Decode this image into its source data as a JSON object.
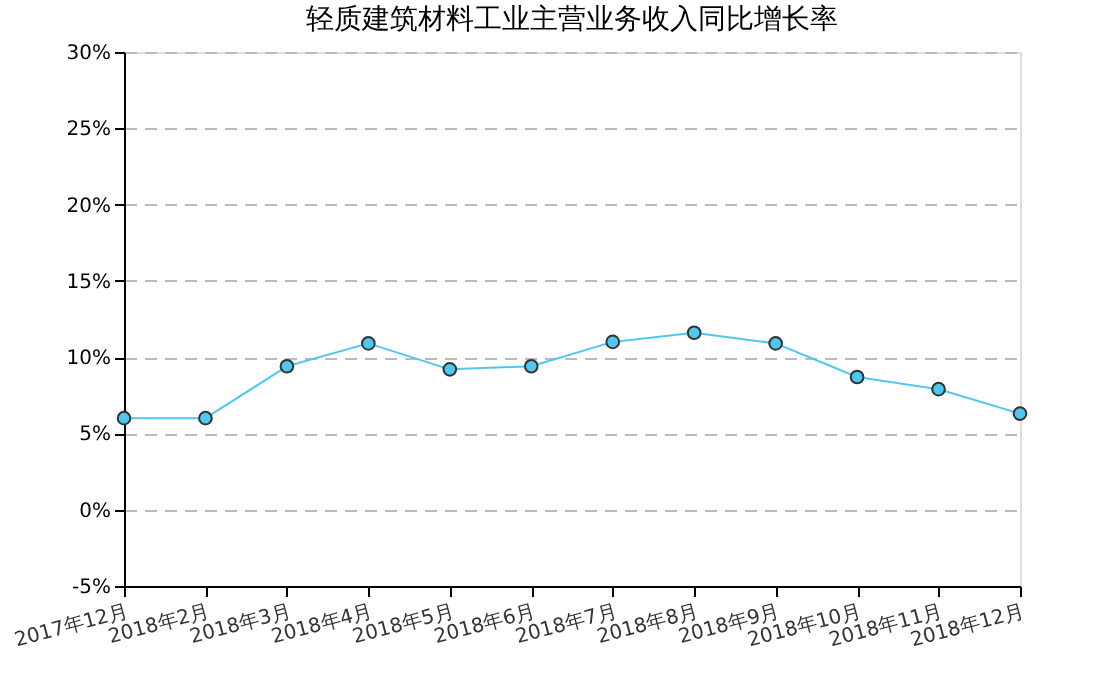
{
  "chart_data": {
    "type": "line",
    "title": "轻质建筑材料工业主营业务收入同比增长率",
    "categories": [
      "2017年12月",
      "2018年2月",
      "2018年3月",
      "2018年4月",
      "2018年5月",
      "2018年6月",
      "2018年7月",
      "2018年8月",
      "2018年9月",
      "2018年10月",
      "2018年11月",
      "2018年12月"
    ],
    "series": [
      {
        "color": "#4fc8f0",
        "values": [
          6.0,
          6.0,
          9.4,
          10.9,
          9.2,
          9.4,
          11.0,
          11.6,
          10.9,
          8.7,
          7.9,
          6.3
        ]
      }
    ],
    "ylim": [
      -5,
      30
    ],
    "yticks": [
      {
        "value": -5,
        "label": "-5%"
      },
      {
        "value": 0,
        "label": "0%"
      },
      {
        "value": 5,
        "label": "5%"
      },
      {
        "value": 10,
        "label": "10%"
      },
      {
        "value": 15,
        "label": "15%"
      },
      {
        "value": 20,
        "label": "20%"
      },
      {
        "value": 25,
        "label": "25%"
      },
      {
        "value": 30,
        "label": "30%"
      }
    ],
    "grid": "y",
    "marker": "circle",
    "line_style": "solid"
  }
}
